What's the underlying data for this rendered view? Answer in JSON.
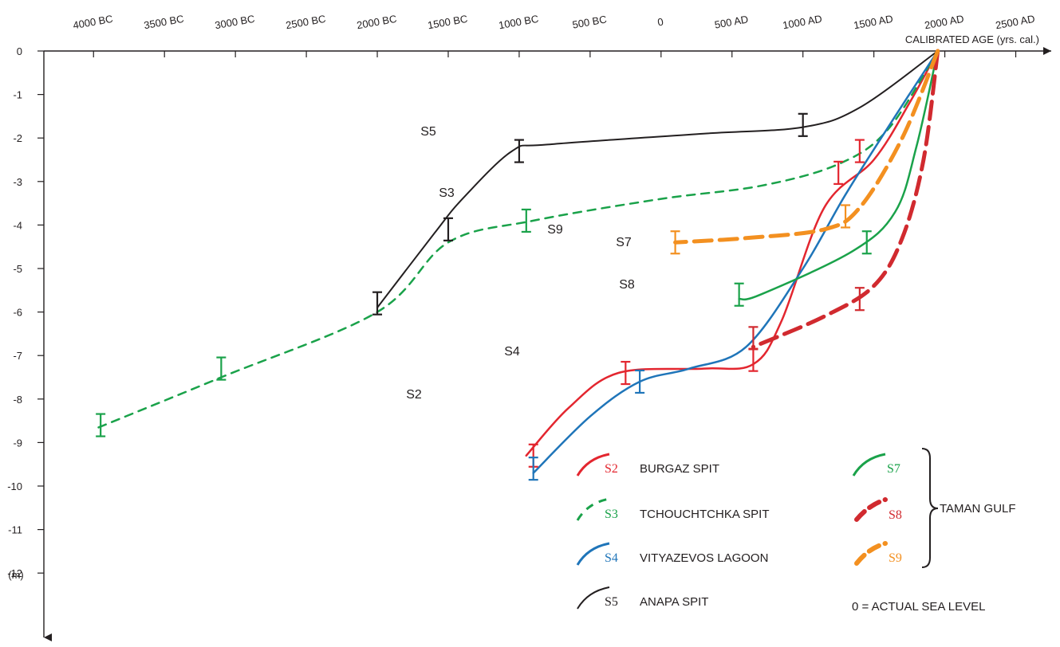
{
  "chart_data": {
    "type": "line",
    "xlabel": "CALIBRATED AGE (yrs. cal.)",
    "ylabel": "(m)",
    "xlim": [
      -4350,
      2750
    ],
    "ylim": [
      -13,
      0
    ],
    "x_tick_values": [
      -4000,
      -3500,
      -3000,
      -2500,
      -2000,
      -1500,
      -1000,
      -500,
      0,
      500,
      1000,
      1500,
      2000,
      2500
    ],
    "x_tick_labels": [
      "4000 BC",
      "3500 BC",
      "3000 BC",
      "2500 BC",
      "2000 BC",
      "1500 BC",
      "1000 BC",
      "500 BC",
      "0",
      "500 AD",
      "1000 AD",
      "1500 AD",
      "2000 AD",
      "2500 AD"
    ],
    "y_tick_values": [
      0,
      -1,
      -2,
      -3,
      -4,
      -5,
      -6,
      -7,
      -8,
      -9,
      -10,
      -11,
      -12
    ],
    "y_tick_labels": [
      "0",
      "-1",
      "-2",
      "-3",
      "-4",
      "-5",
      "-6",
      "-7",
      "-8",
      "-9",
      "-10",
      "-11",
      "-12"
    ],
    "series": [
      {
        "name": "S2",
        "color": "#e3262f",
        "dashed": false,
        "points": [
          [
            1950,
            0
          ],
          [
            1750,
            -1.2
          ],
          [
            1500,
            -2.5
          ],
          [
            1150,
            -3.6
          ],
          [
            850,
            -6.2
          ],
          [
            650,
            -7.2
          ],
          [
            300,
            -7.3
          ],
          [
            -300,
            -7.4
          ],
          [
            -650,
            -8.2
          ],
          [
            -950,
            -9.3
          ]
        ],
        "data_points": [
          [
            1400,
            -2.3
          ],
          [
            1250,
            -2.8
          ],
          [
            650,
            -7.1
          ],
          [
            -250,
            -7.4
          ],
          [
            -900,
            -9.3
          ]
        ]
      },
      {
        "name": "S3",
        "color": "#1aa24a",
        "dashed": true,
        "points": [
          [
            1950,
            0
          ],
          [
            1600,
            -1.8
          ],
          [
            1250,
            -2.6
          ],
          [
            700,
            -3.1
          ],
          [
            0,
            -3.4
          ],
          [
            -900,
            -3.9
          ],
          [
            -1500,
            -4.4
          ],
          [
            -2000,
            -6.0
          ],
          [
            -3100,
            -7.5
          ],
          [
            -4000,
            -8.7
          ]
        ],
        "data_points": [
          [
            -950,
            -3.9
          ],
          [
            -3100,
            -7.3
          ],
          [
            -3950,
            -8.6
          ]
        ]
      },
      {
        "name": "S4",
        "color": "#1f75b9",
        "dashed": false,
        "points": [
          [
            1950,
            0
          ],
          [
            1650,
            -1.5
          ],
          [
            1300,
            -3.3
          ],
          [
            1000,
            -5.0
          ],
          [
            600,
            -6.8
          ],
          [
            200,
            -7.3
          ],
          [
            -150,
            -7.6
          ],
          [
            -500,
            -8.4
          ],
          [
            -900,
            -9.7
          ]
        ],
        "data_points": [
          [
            -150,
            -7.6
          ],
          [
            -900,
            -9.6
          ]
        ]
      },
      {
        "name": "S5",
        "color": "#231f20",
        "dashed": false,
        "points": [
          [
            1950,
            0
          ],
          [
            1400,
            -1.3
          ],
          [
            1000,
            -1.75
          ],
          [
            300,
            -1.9
          ],
          [
            -800,
            -2.15
          ],
          [
            -1050,
            -2.3
          ],
          [
            -1400,
            -3.4
          ],
          [
            -1600,
            -4.2
          ],
          [
            -2000,
            -5.9
          ]
        ],
        "data_points": [
          [
            1000,
            -1.7
          ],
          [
            -1000,
            -2.3
          ],
          [
            -1500,
            -4.1
          ],
          [
            -2000,
            -5.8
          ]
        ]
      },
      {
        "name": "S7",
        "color": "#1aa24a",
        "dashed": false,
        "points": [
          [
            1950,
            0
          ],
          [
            1800,
            -2.2
          ],
          [
            1650,
            -3.7
          ],
          [
            1350,
            -4.6
          ],
          [
            700,
            -5.6
          ],
          [
            550,
            -5.7
          ]
        ],
        "data_points": [
          [
            1450,
            -4.4
          ],
          [
            550,
            -5.6
          ]
        ]
      },
      {
        "name": "S8",
        "color": "#d12a2f",
        "dashed": true,
        "points": [
          [
            1950,
            0
          ],
          [
            1850,
            -2.5
          ],
          [
            1700,
            -4.3
          ],
          [
            1500,
            -5.4
          ],
          [
            1150,
            -6.1
          ],
          [
            650,
            -6.8
          ]
        ],
        "data_points": [
          [
            1400,
            -5.7
          ],
          [
            650,
            -6.6
          ]
        ]
      },
      {
        "name": "S9",
        "color": "#f39020",
        "dashed": true,
        "points": [
          [
            1950,
            0
          ],
          [
            1700,
            -2.0
          ],
          [
            1400,
            -3.6
          ],
          [
            1150,
            -4.1
          ],
          [
            600,
            -4.3
          ],
          [
            100,
            -4.4
          ]
        ],
        "data_points": [
          [
            1300,
            -3.8
          ],
          [
            100,
            -4.4
          ]
        ]
      }
    ],
    "legend": [
      {
        "code": "S2",
        "label": "BURGAZ SPIT",
        "color": "#e3262f",
        "dashed": false
      },
      {
        "code": "S3",
        "label": "TCHOUCHTCHKA SPIT",
        "color": "#1aa24a",
        "dashed": true
      },
      {
        "code": "S4",
        "label": "VITYAZEVOS LAGOON",
        "color": "#1f75b9",
        "dashed": false
      },
      {
        "code": "S5",
        "label": "ANAPA SPIT",
        "color": "#231f20",
        "dashed": false
      },
      {
        "code": "S7",
        "label": "",
        "color": "#1aa24a",
        "dashed": false
      },
      {
        "code": "S8",
        "label": "",
        "color": "#d12a2f",
        "dashed": true
      },
      {
        "code": "S9",
        "label": "",
        "color": "#f39020",
        "dashed": true
      }
    ],
    "group_label": "TAMAN GULF",
    "note": "0 = ACTUAL SEA LEVEL"
  }
}
